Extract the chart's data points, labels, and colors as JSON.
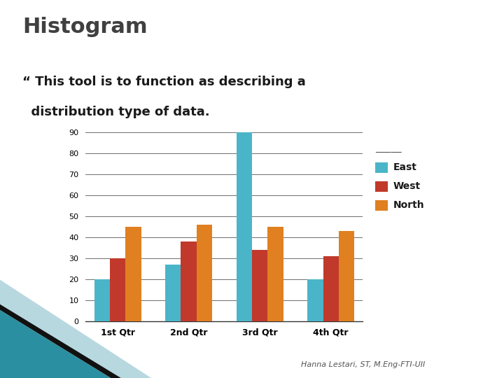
{
  "title": "Histogram",
  "bullet_char": "“",
  "bullet_line1": " This tool is to function as describing a",
  "bullet_line2": "  distribution type of data.",
  "categories": [
    "1st Qtr",
    "2nd Qtr",
    "3rd Qtr",
    "4th Qtr"
  ],
  "series": {
    "East": [
      20,
      27,
      90,
      20
    ],
    "West": [
      30,
      38,
      34,
      31
    ],
    "North": [
      45,
      46,
      45,
      43
    ]
  },
  "colors": {
    "East": "#4ab5c8",
    "West": "#c0392b",
    "North": "#e08020"
  },
  "ylim": [
    0,
    90
  ],
  "yticks": [
    0,
    10,
    20,
    30,
    40,
    50,
    60,
    70,
    80,
    90
  ],
  "bg_color": "#ffffff",
  "title_color": "#404040",
  "footer_text": "Hanna Lestari, ST, M.Eng-FTI-UII",
  "grid_color": "#555555",
  "legend_line_color": "#555555",
  "decor_color1": "#2a8fa0",
  "decor_color2": "#b8d8e0"
}
